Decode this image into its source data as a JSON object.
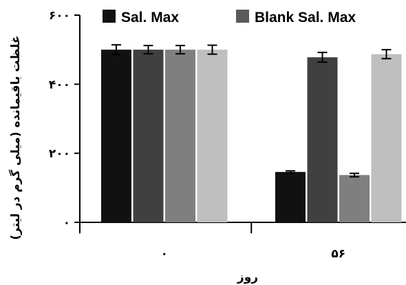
{
  "chart_data": {
    "type": "bar",
    "categories": [
      "۰",
      "۵۶"
    ],
    "series": [
      {
        "name": "Sal. Max",
        "color": "#111111",
        "values": [
          500,
          146
        ],
        "errors": [
          14,
          3
        ]
      },
      {
        "name": "",
        "color": "#404040",
        "values": [
          500,
          478
        ],
        "errors": [
          12,
          14
        ]
      },
      {
        "name": "Blank Sal. Max",
        "color": "#7f7f7f",
        "values": [
          500,
          137
        ],
        "errors": [
          12,
          5
        ]
      },
      {
        "name": "",
        "color": "#bfbfbf",
        "values": [
          500,
          487
        ],
        "errors": [
          13,
          13
        ]
      }
    ],
    "ylim": [
      0,
      600
    ],
    "yticks": [
      {
        "value": 0,
        "label": "۰"
      },
      {
        "value": 200,
        "label": "۲۰۰"
      },
      {
        "value": 400,
        "label": "۴۰۰"
      },
      {
        "value": 600,
        "label": "۶۰۰"
      }
    ],
    "xlabel": "روز",
    "ylabel": "غلظت باقیمانده (میلی گرم در لیتر)",
    "legend": [
      {
        "label": "Sal. Max",
        "color": "#111111"
      },
      {
        "label": "Blank Sal. Max",
        "color": "#5a5a5a"
      }
    ],
    "legend_position": "top",
    "grid": false
  }
}
